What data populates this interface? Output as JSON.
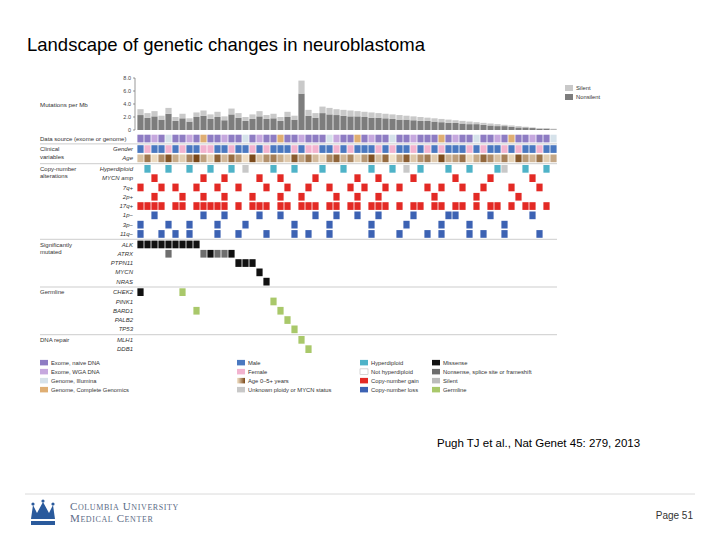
{
  "page": {
    "title": "Landscape of genetic changes in neuroblastoma",
    "citation": "Pugh TJ et al., Nat Genet 45: 279, 2013",
    "logo": [
      "Columbia University",
      "Medical Center"
    ],
    "page_number": "Page 51"
  },
  "chart_data": [
    {
      "type": "bar",
      "stacked": true,
      "grid": false,
      "legend": "right",
      "tick_labels": "y",
      "y_label": "Mutations per Mb",
      "ylim": [
        0,
        8
      ],
      "yticks": [
        0,
        {
          "value": 2,
          "label": "2.0"
        },
        {
          "value": 4,
          "label": "4.0"
        },
        {
          "value": 6,
          "label": "6.0"
        },
        {
          "value": 8,
          "label": "8.0"
        }
      ],
      "categories": [
        null,
        null,
        null,
        null,
        null,
        null,
        null,
        null,
        null,
        null,
        null,
        null,
        null,
        null,
        null,
        null,
        null,
        null,
        null,
        null,
        null,
        null,
        null,
        null,
        null,
        null,
        null,
        null,
        null,
        null,
        null,
        null,
        null,
        null,
        null,
        null,
        null,
        null,
        null,
        null,
        null,
        null,
        null,
        null,
        null,
        null,
        null,
        null,
        null,
        null,
        null,
        null,
        null,
        null,
        null,
        null,
        null,
        null,
        null,
        null
      ],
      "series": [
        {
          "name": "Nonsilent",
          "color": "#7d7d7d",
          "values": [
            2.3,
            1.9,
            2.1,
            1.6,
            2.5,
            1.4,
            1.8,
            1.3,
            2.0,
            2.2,
            1.7,
            2.0,
            1.5,
            2.4,
            1.9,
            1.4,
            1.7,
            2.1,
            1.7,
            1.8,
            1.4,
            2.0,
            1.6,
            5.6,
            2.2,
            1.9,
            2.6,
            2.4,
            2.3,
            2.2,
            2.1,
            2.1,
            2.0,
            1.9,
            1.9,
            1.8,
            1.7,
            1.6,
            1.6,
            1.5,
            1.4,
            1.4,
            1.3,
            1.2,
            1.1,
            1.1,
            1.0,
            0.9,
            0.9,
            0.8,
            0.7,
            0.6,
            0.6,
            0.5,
            0.4,
            0.4,
            0.3,
            0.2,
            0.2,
            0.1
          ]
        },
        {
          "name": "Silent",
          "color": "#c9c9c9",
          "values": [
            0.9,
            0.7,
            0.8,
            0.6,
            0.9,
            0.6,
            0.7,
            0.5,
            0.7,
            0.8,
            0.7,
            0.8,
            0.6,
            0.9,
            0.7,
            0.6,
            0.7,
            0.8,
            0.6,
            0.7,
            0.6,
            0.8,
            0.6,
            2.0,
            0.9,
            0.7,
            1.0,
            1.0,
            0.9,
            0.9,
            0.9,
            0.8,
            0.8,
            0.8,
            0.7,
            0.7,
            0.7,
            0.7,
            0.6,
            0.6,
            0.6,
            0.5,
            0.5,
            0.5,
            0.5,
            0.4,
            0.4,
            0.4,
            0.3,
            0.3,
            0.3,
            0.3,
            0.2,
            0.2,
            0.2,
            0.1,
            0.1,
            0.1,
            0.1,
            0.1
          ]
        }
      ]
    },
    {
      "type": "oncoprint",
      "groups": [
        {
          "label": "Data source (exome or genome)",
          "rows": [
            {
              "values": [
                "Exome, naive DNA",
                "Exome, naive DNA",
                "Exome, WGA DNA",
                "Exome, naive DNA",
                "Genome, Illumina",
                "Exome, naive DNA",
                "Exome, naive DNA",
                "Exome, WGA DNA",
                "Exome, naive DNA",
                "Genome, Complete Genomics",
                "Exome, naive DNA",
                "Exome, naive DNA",
                "Exome, WGA DNA",
                "Exome, naive DNA",
                "Exome, naive DNA",
                "Genome, Illumina",
                "Exome, naive DNA",
                "Exome, WGA DNA",
                "Exome, naive DNA",
                "Exome, naive DNA",
                "Genome, Complete Genomics",
                "Exome, naive DNA",
                "Exome, naive DNA",
                "Exome, WGA DNA",
                "Exome, naive DNA",
                "Exome, naive DNA",
                "Exome, naive DNA",
                "Genome, Illumina",
                "Exome, WGA DNA",
                "Exome, naive DNA",
                "Exome, naive DNA",
                "Genome, Complete Genomics",
                "Exome, naive DNA",
                "Exome, WGA DNA",
                "Exome, naive DNA",
                "Exome, naive DNA",
                "Genome, Illumina",
                "Exome, naive DNA",
                "Exome, naive DNA",
                "Exome, WGA DNA",
                "Exome, naive DNA",
                "Exome, naive DNA",
                "Exome, naive DNA",
                "Genome, Complete Genomics",
                "Exome, naive DNA",
                "Exome, WGA DNA",
                "Exome, naive DNA",
                "Exome, naive DNA",
                "Genome, Illumina",
                "Exome, naive DNA",
                "Exome, naive DNA",
                "Exome, WGA DNA",
                "Exome, naive DNA",
                "Genome, Complete Genomics",
                "Exome, naive DNA",
                "Exome, naive DNA",
                "Exome, WGA DNA",
                "Exome, naive DNA",
                "Exome, naive DNA",
                "Genome, Illumina"
              ]
            }
          ]
        },
        {
          "label": "Clinical variables",
          "rows": [
            {
              "name": "Gender",
              "values": [
                "Male",
                "Female",
                "Male",
                "Male",
                "Female",
                "Male",
                "Female",
                "Male",
                "Male",
                "Female",
                "Female",
                "Male",
                "Male",
                "Female",
                "Male",
                "Male",
                "Female",
                "Male",
                "Female",
                "Male",
                "Male",
                "Male",
                "Female",
                "Male",
                "Female",
                "Female",
                "Male",
                "Male",
                "Female",
                "Male",
                "Female",
                "Male",
                "Male",
                "Male",
                "Female",
                "Male",
                "Female",
                "Male",
                "Male",
                "Female",
                "Male",
                "Female",
                "Male",
                "Female",
                "Male",
                "Male",
                "Male",
                "Female",
                "Male",
                "Female",
                "Male",
                "Male",
                "Female",
                "Male",
                "Female",
                "Male",
                "Male",
                "Female",
                "Male",
                "Male"
              ]
            },
            {
              "name": "Age",
              "color_range": [
                0,
                5
              ],
              "values": [
                1.2,
                3.5,
                0.4,
                2.8,
                4.6,
                1.9,
                0.8,
                3.1,
                5.0,
                2.2,
                0.6,
                4.2,
                1.5,
                3.8,
                2.4,
                0.3,
                4.9,
                1.1,
                2.7,
                3.3,
                1.8,
                0.9,
                4.4,
                2.0,
                3.6,
                1.4,
                0.5,
                2.9,
                4.1,
                1.6,
                3.0,
                0.7,
                2.5,
                4.7,
                1.3,
                3.9,
                0.2,
                2.1,
                4.3,
                1.0,
                2.6,
                3.4,
                0.9,
                4.8,
                1.7,
                2.3,
                3.7,
                0.4,
                1.9,
                4.0,
                2.8,
                1.2,
                3.2,
                0.6,
                4.5,
                2.4,
                1.5,
                3.6,
                0.8,
                2.0
              ]
            }
          ]
        },
        {
          "label": "Copy-number alterations",
          "rows": [
            {
              "name": "Hyperdiploid",
              "samples": [
                1,
                4,
                7,
                10,
                13,
                15,
                19,
                22,
                26,
                29,
                33,
                36,
                38,
                40,
                44,
                47,
                51,
                52,
                55,
                58
              ],
              "kinds": [
                "Hyperdiploid",
                "Hyperdiploid",
                "Hyperdiploid",
                "Hyperdiploid",
                "Hyperdiploid",
                "Unknown ploidy or MYCN status",
                "Hyperdiploid",
                "Hyperdiploid",
                "Hyperdiploid",
                "Hyperdiploid",
                "Hyperdiploid",
                "Hyperdiploid",
                "Unknown ploidy or MYCN status",
                "Hyperdiploid",
                "Hyperdiploid",
                "Hyperdiploid",
                "Hyperdiploid",
                "Unknown ploidy or MYCN status",
                "Hyperdiploid",
                "Hyperdiploid"
              ]
            },
            {
              "name": "MYCN amp",
              "kind": "Copy-number gain",
              "samples": [
                2,
                9,
                12,
                17,
                20,
                25,
                31,
                34,
                39,
                45,
                50,
                56
              ]
            },
            {
              "name": "7q+",
              "kind": "Copy-number gain",
              "samples": [
                0,
                3,
                5,
                8,
                11,
                14,
                18,
                21,
                24,
                27,
                30,
                32,
                35,
                37,
                41,
                43,
                46,
                49,
                53,
                57
              ]
            },
            {
              "name": "2p+",
              "kind": "Copy-number gain",
              "samples": [
                2,
                6,
                9,
                12,
                16,
                20,
                23,
                28,
                31,
                34,
                42,
                48,
                54
              ]
            },
            {
              "name": "17q+",
              "kind": "Copy-number gain",
              "samples": [
                0,
                1,
                2,
                3,
                5,
                6,
                8,
                9,
                10,
                11,
                12,
                14,
                16,
                17,
                18,
                20,
                21,
                23,
                24,
                25,
                27,
                28,
                30,
                31,
                33,
                34,
                35,
                37,
                39,
                40,
                42,
                43,
                45,
                46,
                48,
                50,
                51,
                53,
                55,
                56,
                58
              ]
            },
            {
              "name": "1p−",
              "kind": "Copy-number loss",
              "samples": [
                2,
                9,
                12,
                17,
                20,
                25,
                28,
                31,
                34,
                39,
                44,
                45,
                50,
                56
              ]
            },
            {
              "name": "3p−",
              "kind": "Copy-number loss",
              "samples": [
                0,
                4,
                7,
                11,
                15,
                22,
                27,
                33,
                38,
                43,
                47,
                52
              ]
            },
            {
              "name": "11q−",
              "kind": "Copy-number loss",
              "samples": [
                0,
                3,
                5,
                7,
                11,
                14,
                18,
                22,
                24,
                27,
                33,
                37,
                41,
                43,
                47,
                49,
                52,
                57
              ]
            }
          ]
        },
        {
          "label": "Significantly mutated",
          "rows": [
            {
              "name": "ALK",
              "kind": "Missense",
              "samples": [
                0,
                1,
                2,
                3,
                4,
                5,
                6,
                7,
                8
              ]
            },
            {
              "name": "ATRX",
              "samples": [
                4,
                9,
                10,
                11,
                12,
                13
              ],
              "kinds": [
                "Nonsense, splice site or frameshift",
                "Nonsense, splice site or frameshift",
                "Missense",
                "Nonsense, splice site or frameshift",
                "Nonsense, splice site or frameshift",
                "Missense"
              ]
            },
            {
              "name": "PTPN11",
              "kind": "Missense",
              "samples": [
                14,
                15,
                16
              ]
            },
            {
              "name": "MYCN",
              "kind": "Missense",
              "samples": [
                17
              ]
            },
            {
              "name": "NRAS",
              "kind": "Missense",
              "samples": [
                18
              ]
            }
          ]
        },
        {
          "label": "Germline",
          "rows": [
            {
              "name": "CHEK2",
              "kinds": [
                "Missense",
                "Germline"
              ],
              "samples": [
                0,
                6
              ]
            },
            {
              "name": "PINK1",
              "kind": "Germline",
              "samples": [
                19
              ]
            },
            {
              "name": "BARD1",
              "kind": "Germline",
              "samples": [
                8,
                20
              ]
            },
            {
              "name": "PALB2",
              "kind": "Germline",
              "samples": [
                21
              ]
            },
            {
              "name": "TP53",
              "kind": "Germline",
              "samples": [
                22
              ]
            }
          ]
        },
        {
          "label": "DNA repair",
          "rows": [
            {
              "name": "MLH1",
              "kind": "Germline",
              "samples": [
                23
              ]
            },
            {
              "name": "DDB1",
              "kind": "Germline",
              "samples": [
                24
              ]
            }
          ]
        }
      ],
      "legend_entries": [
        {
          "label": "Exome, naive DNA",
          "color": "#8e7cc3"
        },
        {
          "label": "Exome, WGA DNA",
          "color": "#c6a8de"
        },
        {
          "label": "Genome, Illumina",
          "color": "#d6e2ea"
        },
        {
          "label": "Genome, Complete Genomics",
          "color": "#dfae73"
        },
        {
          "label": "Male",
          "color": "#4a78c0"
        },
        {
          "label": "Female",
          "color": "#f2b3cf"
        },
        {
          "label": "Age 0–5+ years",
          "colors": [
            "#f6e7cf",
            "#7a4818"
          ]
        },
        {
          "label": "Unknown ploidy or MYCN status",
          "color": "#c8c8c8"
        },
        {
          "label": "Hyperdiploid",
          "color": "#4fb3c8"
        },
        {
          "label": "Not hyperdiploid",
          "color": "#ffffff"
        },
        {
          "label": "Copy-number gain",
          "color": "#e32a25"
        },
        {
          "label": "Copy-number loss",
          "color": "#3c62b3"
        },
        {
          "label": "Missense",
          "color": "#111111"
        },
        {
          "label": "Nonsense, splice site or frameshift",
          "color": "#6e6e6e"
        },
        {
          "label": "Silent",
          "color": "#bcbcbc"
        },
        {
          "label": "Germline",
          "color": "#a9c86a"
        }
      ]
    }
  ]
}
